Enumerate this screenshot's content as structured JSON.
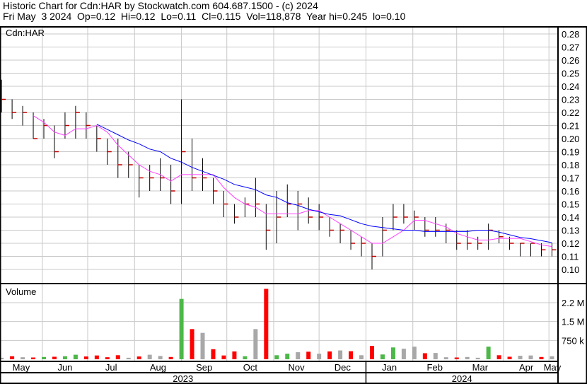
{
  "header": {
    "title": "Historic Chart for Cdn:HAR by Stockwatch.com 604.687.1500 - (c) 2024",
    "quote": "Fri May  3 2024  Op=0.12  Hi=0.12  Lo=0.11  Cl=0.115  Vol=118,878  Year hi=0.245  lo=0.10"
  },
  "colors": {
    "up": "#4cb848",
    "down": "#ff0000",
    "flat": "#a8a8a8",
    "ma_short": "#ff40ff",
    "ma_long": "#0000ff",
    "grid": "#c8c8c8",
    "price_bar": "#000000"
  },
  "chart_data": {
    "type": "ohlc",
    "symbol_label": "Cdn:HAR",
    "volume_label": "Volume",
    "ylim": [
      0.095,
      0.285
    ],
    "price_ticks": [
      "0.28",
      "0.27",
      "0.26",
      "0.25",
      "0.24",
      "0.23",
      "0.22",
      "0.21",
      "0.20",
      "0.19",
      "0.18",
      "0.17",
      "0.16",
      "0.15",
      "0.14",
      "0.13",
      "0.12",
      "0.11",
      "0.10"
    ],
    "volume_ticks": [
      {
        "label": "2.2 M",
        "value": 2250000
      },
      {
        "label": "1.5 M",
        "value": 1500000
      },
      {
        "label": "750 k",
        "value": 750000
      }
    ],
    "months": [
      {
        "label": "May",
        "date": "2023-05-01"
      },
      {
        "label": "Jun",
        "date": "2023-06-01"
      },
      {
        "label": "Jul",
        "date": "2023-07-01"
      },
      {
        "label": "Aug",
        "date": "2023-08-01"
      },
      {
        "label": "Sep",
        "date": "2023-09-01"
      },
      {
        "label": "Oct",
        "date": "2023-10-01"
      },
      {
        "label": "Nov",
        "date": "2023-11-01"
      },
      {
        "label": "Dec",
        "date": "2023-12-01"
      },
      {
        "label": "Jan",
        "date": "2024-01-01"
      },
      {
        "label": "Feb",
        "date": "2024-02-01"
      },
      {
        "label": "Mar",
        "date": "2024-03-01"
      },
      {
        "label": "Apr",
        "date": "2024-04-01"
      },
      {
        "label": "May",
        "date": "2024-05-01"
      }
    ],
    "years": [
      {
        "label": "2023",
        "from": "2023-05-01",
        "to": "2024-01-01"
      },
      {
        "label": "2024",
        "from": "2024-01-01",
        "to": "2024-05-08"
      }
    ],
    "date_range": [
      "2023-05-04",
      "2024-05-07"
    ],
    "bars": [
      [
        "2023-05-05",
        0.245,
        0.22,
        0.23,
        60000
      ],
      [
        "2023-05-12",
        0.23,
        0.215,
        0.22,
        120000
      ],
      [
        "2023-05-19",
        0.225,
        0.21,
        0.22,
        80000
      ],
      [
        "2023-05-26",
        0.22,
        0.2,
        0.2,
        70000
      ],
      [
        "2023-06-02",
        0.215,
        0.2,
        0.21,
        90000
      ],
      [
        "2023-06-09",
        0.21,
        0.185,
        0.19,
        100000
      ],
      [
        "2023-06-16",
        0.22,
        0.2,
        0.21,
        120000
      ],
      [
        "2023-06-23",
        0.225,
        0.2,
        0.22,
        180000
      ],
      [
        "2023-06-30",
        0.22,
        0.2,
        0.21,
        110000
      ],
      [
        "2023-07-07",
        0.21,
        0.19,
        0.2,
        150000
      ],
      [
        "2023-07-14",
        0.2,
        0.18,
        0.19,
        80000
      ],
      [
        "2023-07-21",
        0.2,
        0.17,
        0.18,
        160000
      ],
      [
        "2023-07-28",
        0.19,
        0.17,
        0.18,
        60000
      ],
      [
        "2023-08-04",
        0.18,
        0.155,
        0.17,
        110000
      ],
      [
        "2023-08-11",
        0.18,
        0.16,
        0.17,
        180000
      ],
      [
        "2023-08-18",
        0.185,
        0.16,
        0.17,
        130000
      ],
      [
        "2023-08-25",
        0.18,
        0.15,
        0.16,
        90000
      ],
      [
        "2023-09-01",
        0.23,
        0.15,
        0.19,
        2400000
      ],
      [
        "2023-09-08",
        0.2,
        0.16,
        0.17,
        1200000
      ],
      [
        "2023-09-15",
        0.185,
        0.16,
        0.17,
        1050000
      ],
      [
        "2023-09-22",
        0.17,
        0.15,
        0.16,
        400000
      ],
      [
        "2023-09-29",
        0.16,
        0.14,
        0.15,
        150000
      ],
      [
        "2023-10-06",
        0.15,
        0.135,
        0.14,
        310000
      ],
      [
        "2023-10-13",
        0.155,
        0.14,
        0.15,
        120000
      ],
      [
        "2023-10-20",
        0.17,
        0.14,
        0.15,
        1200000
      ],
      [
        "2023-10-27",
        0.15,
        0.115,
        0.13,
        2800000
      ],
      [
        "2023-11-03",
        0.16,
        0.12,
        0.14,
        160000
      ],
      [
        "2023-11-10",
        0.165,
        0.14,
        0.15,
        220000
      ],
      [
        "2023-11-17",
        0.16,
        0.13,
        0.15,
        280000
      ],
      [
        "2023-11-24",
        0.155,
        0.135,
        0.14,
        300000
      ],
      [
        "2023-12-01",
        0.15,
        0.13,
        0.14,
        220000
      ],
      [
        "2023-12-08",
        0.14,
        0.125,
        0.13,
        310000
      ],
      [
        "2023-12-15",
        0.135,
        0.12,
        0.13,
        350000
      ],
      [
        "2023-12-22",
        0.13,
        0.115,
        0.12,
        320000
      ],
      [
        "2023-12-29",
        0.125,
        0.11,
        0.12,
        160000
      ],
      [
        "2024-01-05",
        0.12,
        0.1,
        0.11,
        530000
      ],
      [
        "2024-01-12",
        0.14,
        0.11,
        0.13,
        190000
      ],
      [
        "2024-01-19",
        0.15,
        0.13,
        0.14,
        470000
      ],
      [
        "2024-01-26",
        0.15,
        0.135,
        0.14,
        420000
      ],
      [
        "2024-02-02",
        0.145,
        0.13,
        0.14,
        500000
      ],
      [
        "2024-02-09",
        0.14,
        0.125,
        0.13,
        240000
      ],
      [
        "2024-02-16",
        0.14,
        0.125,
        0.13,
        250000
      ],
      [
        "2024-02-23",
        0.135,
        0.12,
        0.13,
        80000
      ],
      [
        "2024-03-01",
        0.13,
        0.115,
        0.12,
        70000
      ],
      [
        "2024-03-08",
        0.13,
        0.115,
        0.12,
        90000
      ],
      [
        "2024-03-15",
        0.125,
        0.115,
        0.12,
        60000
      ],
      [
        "2024-03-22",
        0.135,
        0.115,
        0.13,
        500000
      ],
      [
        "2024-03-29",
        0.13,
        0.12,
        0.125,
        160000
      ],
      [
        "2024-04-05",
        0.125,
        0.115,
        0.12,
        100000
      ],
      [
        "2024-04-12",
        0.12,
        0.11,
        0.12,
        140000
      ],
      [
        "2024-04-19",
        0.12,
        0.11,
        0.12,
        150000
      ],
      [
        "2024-04-26",
        0.12,
        0.11,
        0.115,
        90000
      ],
      [
        "2024-05-03",
        0.12,
        0.11,
        0.115,
        118878
      ]
    ]
  }
}
